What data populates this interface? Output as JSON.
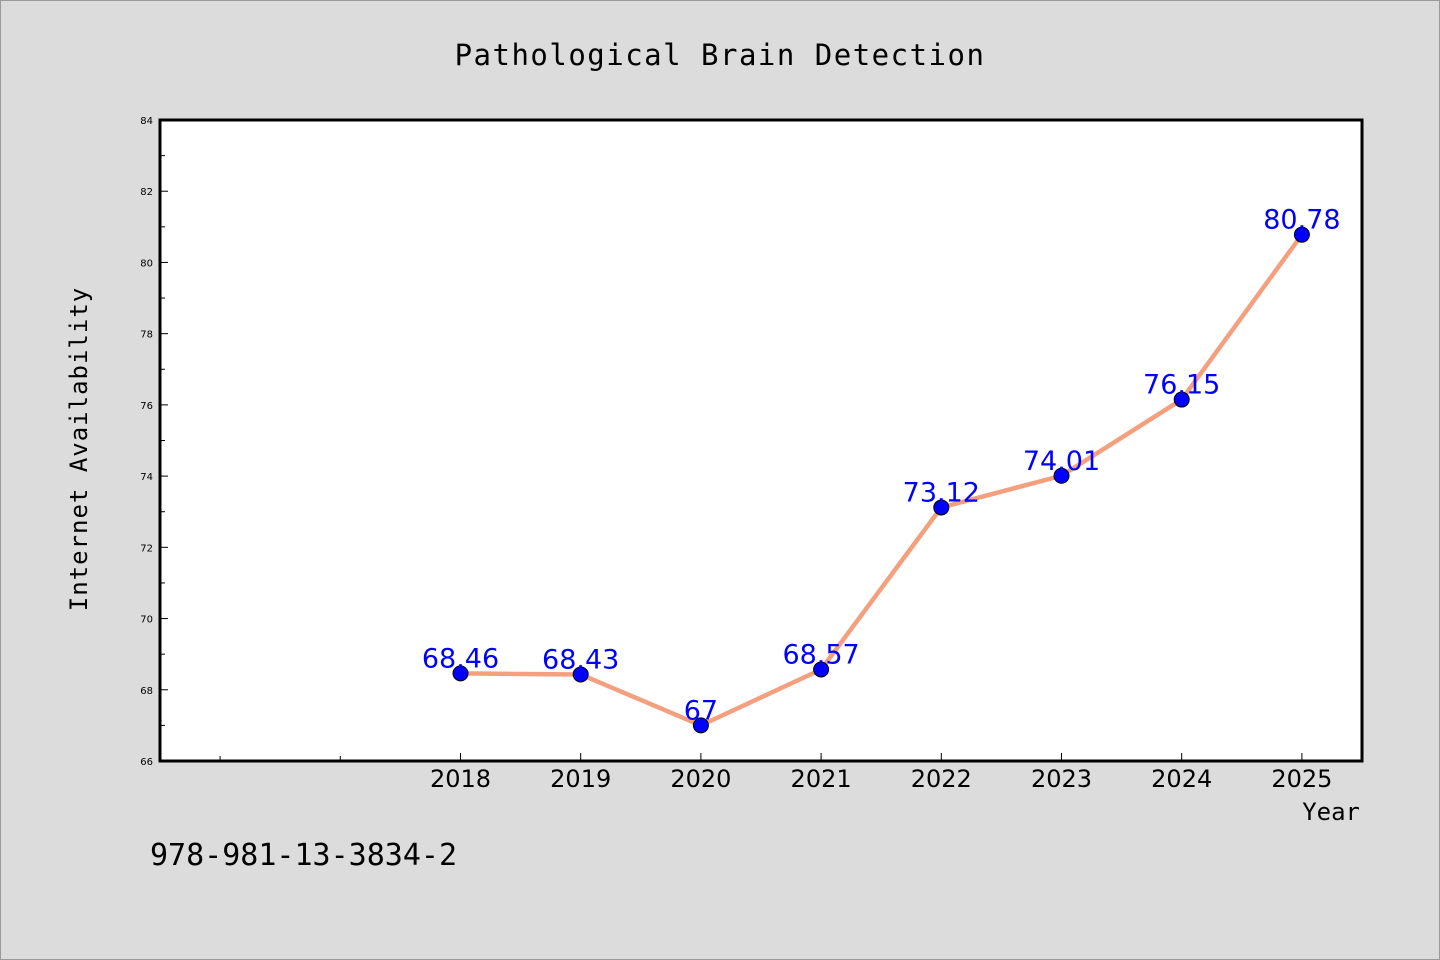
{
  "chart_data": {
    "type": "line",
    "title": "Pathological Brain Detection",
    "xlabel": "Year",
    "ylabel": "Internet Availability",
    "categories": [
      "2018",
      "2019",
      "2020",
      "2021",
      "2022",
      "2023",
      "2024",
      "2025"
    ],
    "series": [
      {
        "values": [
          68.46,
          68.43,
          67,
          68.57,
          73.12,
          74.01,
          76.15,
          80.78
        ],
        "labels": [
          "68.46",
          "68.43",
          "67",
          "68.57",
          "73.12",
          "74.01",
          "76.15",
          "80.78"
        ],
        "line_color": "#f4a07e",
        "marker_color": "#0000ff"
      }
    ],
    "ylim": [
      66,
      84
    ],
    "yticks": [
      "66",
      "68",
      "70",
      "72",
      "74",
      "76",
      "78",
      "80",
      "82",
      "84"
    ],
    "grid": false,
    "data_label_color": "#0000ff"
  },
  "footer": {
    "text": "978-981-13-3834-2"
  }
}
